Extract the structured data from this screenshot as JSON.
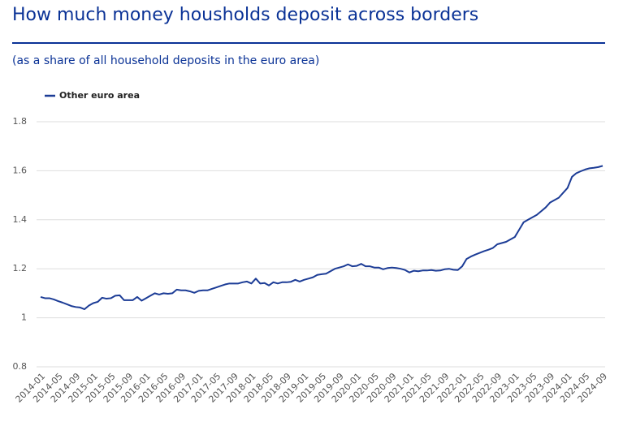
{
  "chart_data": {
    "type": "line",
    "title": "How much money housholds deposit across borders",
    "subtitle": "(as a share of all household deposits in the euro area)",
    "categories": [
      "2014-01",
      null,
      null,
      null,
      "2014-05",
      null,
      null,
      null,
      "2014-09",
      null,
      null,
      null,
      "2015-01",
      null,
      null,
      null,
      "2015-05",
      null,
      null,
      null,
      "2015-09",
      null,
      null,
      null,
      "2016-01",
      null,
      null,
      null,
      "2016-05",
      null,
      null,
      null,
      "2016-09",
      null,
      null,
      null,
      "2017-01",
      null,
      null,
      null,
      "2017-05",
      null,
      null,
      null,
      "2017-09",
      null,
      null,
      null,
      "2018-01",
      null,
      null,
      null,
      "2018-05",
      null,
      null,
      null,
      "2018-09",
      null,
      null,
      null,
      "2019-01",
      null,
      null,
      null,
      "2019-05",
      null,
      null,
      null,
      "2019-09",
      null,
      null,
      null,
      "2020-01",
      null,
      null,
      null,
      "2020-05",
      null,
      null,
      null,
      "2020-09",
      null,
      null,
      null,
      "2021-01",
      null,
      null,
      null,
      "2021-05",
      null,
      null,
      null,
      "2021-09",
      null,
      null,
      null,
      "2022-01",
      null,
      null,
      null,
      "2022-05",
      null,
      null,
      null,
      "2022-09",
      null,
      null,
      null,
      "2023-01",
      null,
      null,
      null,
      "2023-05",
      null,
      null,
      null,
      "2023-09",
      null,
      null,
      null,
      "2024-01",
      null,
      null,
      null,
      "2024-05",
      null,
      null,
      null,
      "2024-09"
    ],
    "series": [
      {
        "name": "Other euro area",
        "color": "#1c3c96",
        "values": [
          1.085,
          1.08,
          1.08,
          1.075,
          1.068,
          1.062,
          1.055,
          1.048,
          1.044,
          1.042,
          1.035,
          1.05,
          1.06,
          1.065,
          1.082,
          1.078,
          1.08,
          1.09,
          1.092,
          1.072,
          1.072,
          1.072,
          1.085,
          1.07,
          1.08,
          1.09,
          1.1,
          1.095,
          1.1,
          1.098,
          1.1,
          1.115,
          1.112,
          1.112,
          1.108,
          1.102,
          1.11,
          1.112,
          1.112,
          1.118,
          1.124,
          1.13,
          1.136,
          1.14,
          1.14,
          1.14,
          1.145,
          1.148,
          1.14,
          1.16,
          1.14,
          1.142,
          1.132,
          1.145,
          1.14,
          1.145,
          1.145,
          1.147,
          1.155,
          1.148,
          1.155,
          1.16,
          1.165,
          1.175,
          1.178,
          1.18,
          1.19,
          1.2,
          1.205,
          1.21,
          1.218,
          1.21,
          1.212,
          1.22,
          1.21,
          1.21,
          1.205,
          1.205,
          1.198,
          1.203,
          1.205,
          1.203,
          1.2,
          1.195,
          1.185,
          1.192,
          1.19,
          1.193,
          1.193,
          1.195,
          1.192,
          1.193,
          1.198,
          1.2,
          1.196,
          1.195,
          1.21,
          1.24,
          1.25,
          1.258,
          1.265,
          1.272,
          1.278,
          1.285,
          1.3,
          1.305,
          1.31,
          1.32,
          1.33,
          1.36,
          1.39,
          1.4,
          1.41,
          1.42,
          1.435,
          1.45,
          1.47,
          1.48,
          1.49,
          1.51,
          1.53,
          1.575,
          1.59,
          1.598,
          1.605,
          1.61,
          1.612,
          1.615,
          1.62
        ]
      }
    ],
    "ylim": [
      0.8,
      1.8
    ],
    "yticks": [
      0.8,
      1,
      1.2,
      1.4,
      1.6,
      1.8
    ],
    "grid": true,
    "legend": "top-left"
  }
}
